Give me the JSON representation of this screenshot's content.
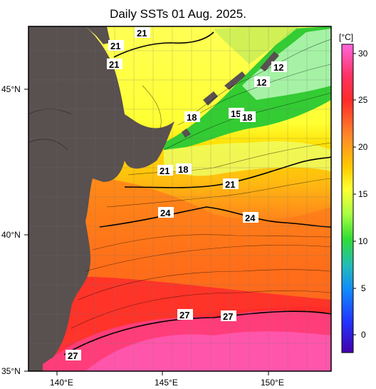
{
  "title": "Daily SSTs 01 Aug. 2025.",
  "lon_ticks": [
    "140°E",
    "145°E",
    "150°E"
  ],
  "lat_ticks": [
    "45°N",
    "40°N",
    "35°N"
  ],
  "colorbar": {
    "unit": "[°C]",
    "ticks": [
      "30",
      "25",
      "20",
      "15",
      "10",
      "5",
      "0"
    ],
    "colors": [
      "#ff66dd",
      "#ff2a2a",
      "#ff8a2a",
      "#ffcc00",
      "#ffff33",
      "#aaff44",
      "#33dd33",
      "#22bbbb",
      "#1188ff",
      "#2233ff",
      "#4400aa"
    ]
  },
  "land_color": "#595050",
  "contour_labels": [
    {
      "text": "21"
    },
    {
      "text": "21"
    },
    {
      "text": "21"
    },
    {
      "text": "12"
    },
    {
      "text": "12"
    },
    {
      "text": "18"
    },
    {
      "text": "15"
    },
    {
      "text": "18"
    },
    {
      "text": "21"
    },
    {
      "text": "18"
    },
    {
      "text": "21"
    },
    {
      "text": "24"
    },
    {
      "text": "24"
    },
    {
      "text": "27"
    },
    {
      "text": "27"
    },
    {
      "text": "27"
    }
  ]
}
